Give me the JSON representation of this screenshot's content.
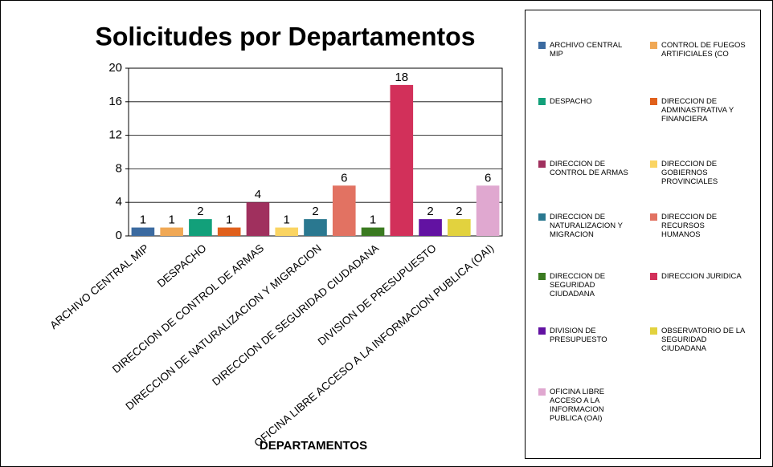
{
  "chart_data": {
    "type": "bar",
    "title": "Solicitudes por Departamentos",
    "x_label": "DEPARTAMENTOS",
    "categories": [
      "ARCHIVO CENTRAL MIP",
      null,
      "DESPACHO",
      null,
      "DIRECCION DE CONTROL DE ARMAS",
      null,
      "DIRECCION DE NATURALIZACION Y MIGRACION",
      null,
      "DIRECCION DE SEGURIDAD CIUDADANA",
      null,
      "DIVISION DE PRESUPUESTO",
      null,
      "OFICINA LIBRE ACCESO A LA INFORMACION PUBLICA (OAI)"
    ],
    "values": [
      1,
      1,
      2,
      1,
      4,
      1,
      2,
      6,
      1,
      18,
      2,
      2,
      6
    ],
    "colors": [
      "#3b6aa0",
      "#f0a855",
      "#12a07a",
      "#e0601c",
      "#a0305e",
      "#fad462",
      "#2a7890",
      "#e27262",
      "#3a7a20",
      "#d2305a",
      "#6212a2",
      "#e2d23e",
      "#e0a8d0"
    ],
    "legend": [
      "ARCHIVO CENTRAL MIP",
      "CONTROL DE FUEGOS ARTIFICIALES (CO",
      "DESPACHO",
      "DIRECCION DE ADMINASTRATIVA Y FINANCIERA",
      "DIRECCION DE CONTROL DE ARMAS",
      "DIRECCION DE GOBIERNOS PROVINCIALES",
      "DIRECCION DE NATURALIZACION Y MIGRACION",
      "DIRECCION DE RECURSOS HUMANOS",
      "DIRECCION DE SEGURIDAD CIUDADANA",
      "DIRECCION JURIDICA",
      "DIVISION DE PRESUPUESTO",
      "OBSERVATORIO DE LA SEGURIDAD CIUDADANA",
      "OFICINA LIBRE ACCESO A LA INFORMACION PUBLICA (OAI)"
    ],
    "ylim": [
      0,
      20
    ],
    "yticks": [
      0,
      4,
      8,
      12,
      16,
      20
    ],
    "grid": true
  }
}
